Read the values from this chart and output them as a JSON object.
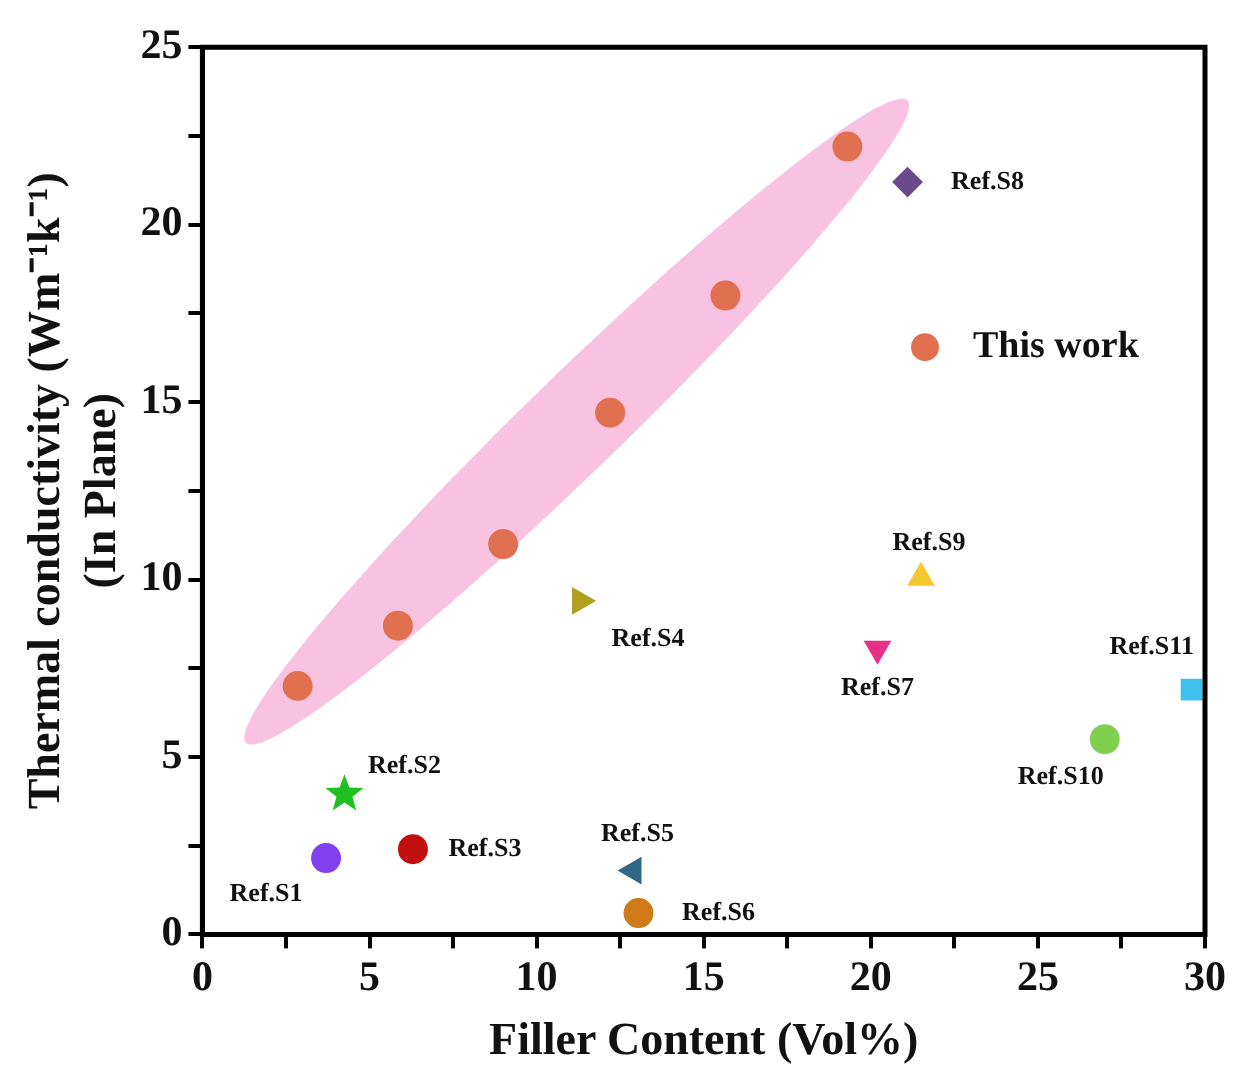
{
  "chart_data": {
    "type": "scatter",
    "xlabel": "Filler Content (Vol%)",
    "ylabel": "Thermal conductivity (Wm⁻¹k⁻¹)\n(In Plane)",
    "xlim": [
      0,
      30
    ],
    "ylim": [
      0,
      25
    ],
    "xticks": [
      0,
      {
        "value": 2.5,
        "label": null
      },
      5,
      {
        "value": 7.5,
        "label": null
      },
      10,
      {
        "value": 12.5,
        "label": null
      },
      15,
      {
        "value": 17.5,
        "label": null
      },
      20,
      {
        "value": 22.5,
        "label": null
      },
      25,
      {
        "value": 27.5,
        "label": null
      },
      30
    ],
    "yticks": [
      0,
      {
        "value": 2.5,
        "label": null
      },
      5,
      {
        "value": 7.5,
        "label": null
      },
      10,
      {
        "value": 12.5,
        "label": null
      },
      15,
      {
        "value": 17.5,
        "label": null
      },
      20,
      {
        "value": 22.5,
        "label": null
      },
      25
    ],
    "legend": "right",
    "marker": "circle",
    "series": [
      {
        "name": "This work",
        "color": "#e07050",
        "x": [
          2.85,
          5.85,
          9.0,
          12.2,
          15.65,
          19.3
        ],
        "values": [
          7.0,
          8.7,
          11.0,
          14.7,
          18.0,
          22.2
        ]
      },
      {
        "name": "Ref.S1",
        "color": "#8040f0",
        "x": [
          3.7
        ],
        "values": [
          2.15
        ]
      },
      {
        "name": "Ref.S2",
        "color": "#20c020",
        "x": [
          4.25
        ],
        "values": [
          3.95
        ],
        "marker": "star"
      },
      {
        "name": "Ref.S3",
        "color": "#c01010",
        "x": [
          6.3
        ],
        "values": [
          2.4
        ]
      },
      {
        "name": "Ref.S4",
        "color": "#b0a020",
        "x": [
          11.3
        ],
        "values": [
          9.4
        ],
        "marker": "triangle"
      },
      {
        "name": "Ref.S5",
        "color": "#306888",
        "x": [
          12.9
        ],
        "values": [
          1.8
        ],
        "marker": "triangle"
      },
      {
        "name": "Ref.S6",
        "color": "#d07a1a",
        "x": [
          13.05
        ],
        "values": [
          0.6
        ]
      },
      {
        "name": "Ref.S7",
        "color": "#e8308a",
        "x": [
          20.2
        ],
        "values": [
          8.05
        ],
        "marker": "triangle"
      },
      {
        "name": "Ref.S8",
        "color": "#6a4a8a",
        "x": [
          21.1
        ],
        "values": [
          21.2
        ],
        "marker": "diamond"
      },
      {
        "name": "Ref.S9",
        "color": "#f5c830",
        "x": [
          21.5
        ],
        "values": [
          10.05
        ],
        "marker": "triangle"
      },
      {
        "name": "Ref.S10",
        "color": "#80d050",
        "x": [
          27.0
        ],
        "values": [
          5.5
        ]
      },
      {
        "name": "Ref.S11",
        "color": "#40c0f0",
        "x": [
          29.6
        ],
        "values": [
          6.9
        ],
        "marker": "square"
      }
    ]
  }
}
